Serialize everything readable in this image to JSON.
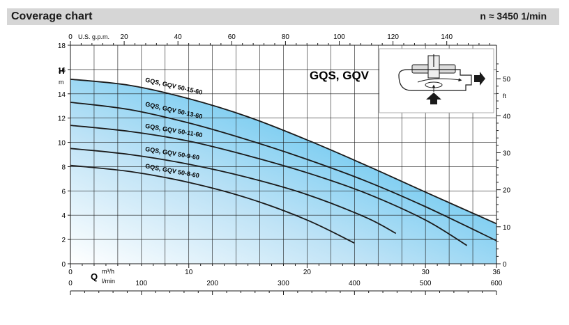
{
  "header": {
    "title": "Coverage chart",
    "speed_label": "n ≈ 3450 1/min"
  },
  "chart_data": {
    "type": "area",
    "title": "GQS, GQV",
    "y_left": {
      "label": "H",
      "unit": "m",
      "range": [
        0,
        18
      ],
      "ticks": [
        0,
        2,
        4,
        6,
        8,
        10,
        12,
        14,
        16,
        18
      ]
    },
    "y_right": {
      "unit": "ft",
      "range": [
        0,
        59.05
      ],
      "ticks": [
        0,
        10,
        20,
        30,
        40,
        50
      ]
    },
    "x_top": {
      "label": "U.S. g.p.m.",
      "range": [
        0,
        158.5
      ],
      "ticks": [
        0,
        20,
        40,
        60,
        80,
        100,
        120,
        140
      ]
    },
    "x_bottom_m3h": {
      "label": "Q",
      "unit": "m³/h",
      "range": [
        0,
        36
      ],
      "ticks": [
        0,
        10,
        20,
        30,
        36
      ]
    },
    "x_bottom_lmin": {
      "unit": "l/min",
      "range": [
        0,
        600
      ],
      "ticks": [
        0,
        100,
        200,
        300,
        400,
        500,
        600
      ]
    },
    "grid": true,
    "series": [
      {
        "name": "GQS, GQV 50-15-60",
        "x": [
          0,
          5,
          10,
          15,
          20,
          25,
          30,
          36
        ],
        "y": [
          15.2,
          14.7,
          13.6,
          12.1,
          10.2,
          8.1,
          5.9,
          3.3
        ]
      },
      {
        "name": "GQS, GQV 50-13-60",
        "x": [
          0,
          5,
          10,
          15,
          20,
          25,
          30,
          36
        ],
        "y": [
          13.3,
          12.7,
          11.6,
          10.2,
          8.6,
          6.8,
          4.7,
          1.9
        ]
      },
      {
        "name": "GQS, GQV 50-11-60",
        "x": [
          0,
          5,
          10,
          15,
          20,
          25,
          30,
          33.5
        ],
        "y": [
          11.4,
          10.9,
          10.1,
          8.9,
          7.5,
          5.8,
          3.6,
          1.5
        ]
      },
      {
        "name": "GQS, GQV 50-9-60",
        "x": [
          0,
          5,
          10,
          15,
          20,
          25,
          27.5
        ],
        "y": [
          9.5,
          9.0,
          8.2,
          7.1,
          5.7,
          3.8,
          2.5
        ]
      },
      {
        "name": "GQS, GQV 50-8-60",
        "x": [
          0,
          5,
          10,
          15,
          20,
          24
        ],
        "y": [
          8.1,
          7.6,
          6.7,
          5.4,
          3.6,
          1.7
        ]
      }
    ]
  }
}
